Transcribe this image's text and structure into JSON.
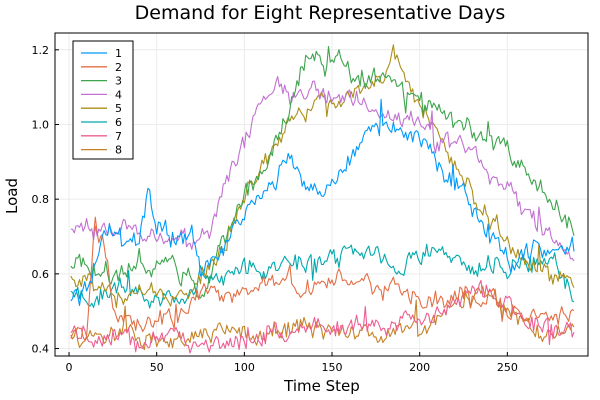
{
  "chart_data": {
    "type": "line",
    "title": "Demand for Eight Representative Days",
    "xlabel": "Time Step",
    "ylabel": "Load",
    "xlim": [
      -8,
      296
    ],
    "ylim": [
      0.38,
      1.245
    ],
    "xticks": [
      0,
      50,
      100,
      150,
      200,
      250
    ],
    "yticks": [
      0.4,
      0.6,
      0.8,
      1.0,
      1.2
    ],
    "xtick_labels": [
      "0",
      "50",
      "100",
      "150",
      "200",
      "250"
    ],
    "ytick_labels": [
      "0.4",
      "0.6",
      "0.8",
      "1.0",
      "1.2"
    ],
    "grid": true,
    "legend_position": "top-left",
    "x": {
      "start": 1,
      "end": 288
    },
    "series": [
      {
        "name": "1",
        "color": "#009AFA",
        "keypoints": [
          [
            1,
            0.53
          ],
          [
            10,
            0.55
          ],
          [
            20,
            0.7
          ],
          [
            30,
            0.7
          ],
          [
            40,
            0.7
          ],
          [
            45,
            0.82
          ],
          [
            50,
            0.72
          ],
          [
            60,
            0.7
          ],
          [
            70,
            0.7
          ],
          [
            75,
            0.6
          ],
          [
            85,
            0.65
          ],
          [
            95,
            0.73
          ],
          [
            105,
            0.78
          ],
          [
            115,
            0.82
          ],
          [
            125,
            0.93
          ],
          [
            135,
            0.85
          ],
          [
            145,
            0.8
          ],
          [
            155,
            0.88
          ],
          [
            165,
            0.93
          ],
          [
            175,
            0.98
          ],
          [
            185,
            1.0
          ],
          [
            195,
            0.98
          ],
          [
            205,
            0.93
          ],
          [
            215,
            0.87
          ],
          [
            225,
            0.82
          ],
          [
            235,
            0.72
          ],
          [
            245,
            0.68
          ],
          [
            255,
            0.62
          ],
          [
            265,
            0.68
          ],
          [
            275,
            0.65
          ],
          [
            288,
            0.66
          ]
        ]
      },
      {
        "name": "2",
        "color": "#E36F47",
        "keypoints": [
          [
            1,
            0.44
          ],
          [
            10,
            0.45
          ],
          [
            15,
            0.74
          ],
          [
            20,
            0.68
          ],
          [
            25,
            0.5
          ],
          [
            35,
            0.47
          ],
          [
            45,
            0.46
          ],
          [
            55,
            0.47
          ],
          [
            65,
            0.49
          ],
          [
            75,
            0.56
          ],
          [
            85,
            0.55
          ],
          [
            95,
            0.53
          ],
          [
            105,
            0.55
          ],
          [
            115,
            0.57
          ],
          [
            125,
            0.57
          ],
          [
            135,
            0.56
          ],
          [
            145,
            0.58
          ],
          [
            155,
            0.59
          ],
          [
            165,
            0.58
          ],
          [
            175,
            0.57
          ],
          [
            185,
            0.56
          ],
          [
            195,
            0.54
          ],
          [
            205,
            0.52
          ],
          [
            215,
            0.53
          ],
          [
            225,
            0.56
          ],
          [
            235,
            0.54
          ],
          [
            245,
            0.52
          ],
          [
            255,
            0.5
          ],
          [
            265,
            0.49
          ],
          [
            275,
            0.49
          ],
          [
            288,
            0.48
          ]
        ]
      },
      {
        "name": "3",
        "color": "#3EA44E",
        "keypoints": [
          [
            1,
            0.62
          ],
          [
            10,
            0.63
          ],
          [
            20,
            0.6
          ],
          [
            30,
            0.6
          ],
          [
            40,
            0.62
          ],
          [
            50,
            0.64
          ],
          [
            60,
            0.61
          ],
          [
            70,
            0.6
          ],
          [
            75,
            0.55
          ],
          [
            85,
            0.66
          ],
          [
            95,
            0.76
          ],
          [
            105,
            0.85
          ],
          [
            115,
            0.92
          ],
          [
            125,
            1.03
          ],
          [
            135,
            1.18
          ],
          [
            145,
            1.15
          ],
          [
            155,
            1.17
          ],
          [
            165,
            1.12
          ],
          [
            175,
            1.13
          ],
          [
            185,
            1.12
          ],
          [
            195,
            1.08
          ],
          [
            205,
            1.05
          ],
          [
            215,
            1.02
          ],
          [
            225,
            1.0
          ],
          [
            235,
            0.98
          ],
          [
            245,
            0.95
          ],
          [
            255,
            0.9
          ],
          [
            265,
            0.84
          ],
          [
            275,
            0.8
          ],
          [
            288,
            0.73
          ]
        ]
      },
      {
        "name": "4",
        "color": "#C271D2",
        "keypoints": [
          [
            1,
            0.73
          ],
          [
            10,
            0.72
          ],
          [
            20,
            0.72
          ],
          [
            30,
            0.73
          ],
          [
            40,
            0.7
          ],
          [
            50,
            0.7
          ],
          [
            60,
            0.7
          ],
          [
            70,
            0.68
          ],
          [
            80,
            0.72
          ],
          [
            90,
            0.85
          ],
          [
            100,
            0.95
          ],
          [
            110,
            1.05
          ],
          [
            120,
            1.1
          ],
          [
            130,
            1.08
          ],
          [
            140,
            1.08
          ],
          [
            150,
            1.07
          ],
          [
            160,
            1.06
          ],
          [
            170,
            1.05
          ],
          [
            180,
            1.02
          ],
          [
            190,
            1.02
          ],
          [
            200,
            1.0
          ],
          [
            210,
            0.95
          ],
          [
            220,
            0.96
          ],
          [
            230,
            0.92
          ],
          [
            240,
            0.88
          ],
          [
            250,
            0.84
          ],
          [
            260,
            0.76
          ],
          [
            270,
            0.72
          ],
          [
            280,
            0.68
          ],
          [
            288,
            0.67
          ]
        ]
      },
      {
        "name": "5",
        "color": "#AC8E18",
        "keypoints": [
          [
            1,
            0.58
          ],
          [
            10,
            0.57
          ],
          [
            20,
            0.56
          ],
          [
            30,
            0.54
          ],
          [
            40,
            0.55
          ],
          [
            50,
            0.55
          ],
          [
            60,
            0.52
          ],
          [
            70,
            0.55
          ],
          [
            80,
            0.62
          ],
          [
            90,
            0.7
          ],
          [
            100,
            0.8
          ],
          [
            110,
            0.87
          ],
          [
            120,
            0.96
          ],
          [
            130,
            1.03
          ],
          [
            140,
            1.06
          ],
          [
            150,
            1.07
          ],
          [
            160,
            1.08
          ],
          [
            170,
            1.1
          ],
          [
            180,
            1.12
          ],
          [
            185,
            1.2
          ],
          [
            190,
            1.15
          ],
          [
            200,
            1.05
          ],
          [
            210,
            0.98
          ],
          [
            220,
            0.9
          ],
          [
            230,
            0.82
          ],
          [
            240,
            0.75
          ],
          [
            250,
            0.7
          ],
          [
            260,
            0.62
          ],
          [
            270,
            0.6
          ],
          [
            280,
            0.58
          ],
          [
            288,
            0.58
          ]
        ]
      },
      {
        "name": "6",
        "color": "#00A9AD",
        "keypoints": [
          [
            1,
            0.55
          ],
          [
            10,
            0.53
          ],
          [
            20,
            0.56
          ],
          [
            30,
            0.56
          ],
          [
            40,
            0.55
          ],
          [
            50,
            0.54
          ],
          [
            60,
            0.52
          ],
          [
            70,
            0.55
          ],
          [
            75,
            0.6
          ],
          [
            85,
            0.58
          ],
          [
            95,
            0.6
          ],
          [
            105,
            0.63
          ],
          [
            115,
            0.6
          ],
          [
            125,
            0.65
          ],
          [
            135,
            0.62
          ],
          [
            145,
            0.64
          ],
          [
            155,
            0.65
          ],
          [
            165,
            0.66
          ],
          [
            175,
            0.66
          ],
          [
            185,
            0.62
          ],
          [
            195,
            0.64
          ],
          [
            205,
            0.66
          ],
          [
            215,
            0.65
          ],
          [
            225,
            0.63
          ],
          [
            235,
            0.62
          ],
          [
            245,
            0.62
          ],
          [
            255,
            0.63
          ],
          [
            265,
            0.64
          ],
          [
            275,
            0.65
          ],
          [
            288,
            0.54
          ]
        ]
      },
      {
        "name": "7",
        "color": "#ED5E93",
        "keypoints": [
          [
            1,
            0.45
          ],
          [
            10,
            0.43
          ],
          [
            20,
            0.43
          ],
          [
            30,
            0.43
          ],
          [
            40,
            0.42
          ],
          [
            50,
            0.43
          ],
          [
            60,
            0.43
          ],
          [
            70,
            0.42
          ],
          [
            80,
            0.42
          ],
          [
            90,
            0.41
          ],
          [
            100,
            0.42
          ],
          [
            110,
            0.44
          ],
          [
            120,
            0.45
          ],
          [
            130,
            0.45
          ],
          [
            140,
            0.46
          ],
          [
            150,
            0.47
          ],
          [
            160,
            0.46
          ],
          [
            170,
            0.46
          ],
          [
            180,
            0.47
          ],
          [
            190,
            0.47
          ],
          [
            200,
            0.48
          ],
          [
            210,
            0.49
          ],
          [
            220,
            0.52
          ],
          [
            230,
            0.55
          ],
          [
            240,
            0.56
          ],
          [
            250,
            0.52
          ],
          [
            260,
            0.48
          ],
          [
            270,
            0.46
          ],
          [
            280,
            0.45
          ],
          [
            288,
            0.45
          ]
        ]
      },
      {
        "name": "8",
        "color": "#C68225",
        "keypoints": [
          [
            1,
            0.43
          ],
          [
            10,
            0.43
          ],
          [
            20,
            0.43
          ],
          [
            30,
            0.44
          ],
          [
            40,
            0.43
          ],
          [
            50,
            0.43
          ],
          [
            60,
            0.43
          ],
          [
            70,
            0.43
          ],
          [
            80,
            0.44
          ],
          [
            90,
            0.44
          ],
          [
            100,
            0.43
          ],
          [
            110,
            0.44
          ],
          [
            120,
            0.45
          ],
          [
            130,
            0.46
          ],
          [
            140,
            0.46
          ],
          [
            150,
            0.44
          ],
          [
            160,
            0.44
          ],
          [
            170,
            0.44
          ],
          [
            180,
            0.44
          ],
          [
            190,
            0.45
          ],
          [
            200,
            0.46
          ],
          [
            210,
            0.48
          ],
          [
            220,
            0.52
          ],
          [
            230,
            0.53
          ],
          [
            240,
            0.54
          ],
          [
            250,
            0.5
          ],
          [
            260,
            0.46
          ],
          [
            270,
            0.44
          ],
          [
            280,
            0.44
          ],
          [
            288,
            0.44
          ]
        ]
      }
    ]
  }
}
